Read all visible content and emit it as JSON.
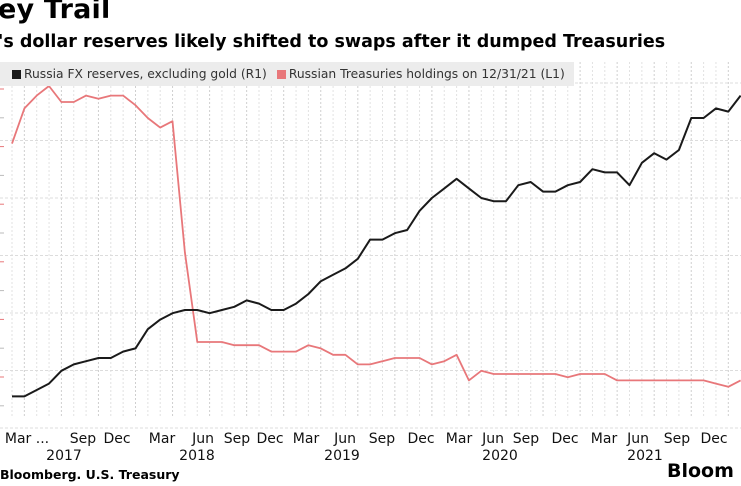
{
  "header": {
    "title": "ey Trail",
    "subtitle": "'s dollar reserves likely shifted to swaps after it dumped Treasuries"
  },
  "footer": {
    "source": "Bloomberg. U.S. Treasury",
    "brand": "Bloom"
  },
  "chart_data": {
    "type": "line",
    "title": "ey Trail",
    "subtitle": "'s dollar reserves likely shifted to swaps after it dumped Treasuries",
    "xlabel": "",
    "ylabel_left": "",
    "ylabel_right": "",
    "y_units_note": "Axis value labels are cropped out of the image; values are relative (0 = bottom of plot, 100 = top of plot).",
    "ylim": [
      0,
      100
    ],
    "grid": true,
    "legend_position": "top-left",
    "x_tick_labels": [
      "Mar ...",
      "Sep",
      "Dec",
      "Mar",
      "Jun",
      "Sep",
      "Dec",
      "Mar",
      "Jun",
      "Sep",
      "Dec",
      "Mar",
      "Jun",
      "Sep",
      "Dec",
      "Mar",
      "Jun",
      "Sep",
      "Dec"
    ],
    "x_year_labels": [
      "2017",
      "2018",
      "2019",
      "2020",
      "2021"
    ],
    "x_range": [
      "2017-02",
      "2021-12"
    ],
    "series": [
      {
        "name": "Russia FX reserves, excluding gold (R1)",
        "axis": "right",
        "color": "#1a1a1a",
        "points": [
          [
            "2017-02",
            3
          ],
          [
            "2017-03",
            3
          ],
          [
            "2017-04",
            5
          ],
          [
            "2017-05",
            7
          ],
          [
            "2017-06",
            11
          ],
          [
            "2017-07",
            13
          ],
          [
            "2017-08",
            14
          ],
          [
            "2017-09",
            15
          ],
          [
            "2017-10",
            15
          ],
          [
            "2017-11",
            17
          ],
          [
            "2017-12",
            18
          ],
          [
            "2018-01",
            24
          ],
          [
            "2018-02",
            27
          ],
          [
            "2018-03",
            29
          ],
          [
            "2018-04",
            30
          ],
          [
            "2018-05",
            30
          ],
          [
            "2018-06",
            29
          ],
          [
            "2018-07",
            30
          ],
          [
            "2018-08",
            31
          ],
          [
            "2018-09",
            33
          ],
          [
            "2018-10",
            32
          ],
          [
            "2018-11",
            30
          ],
          [
            "2018-12",
            30
          ],
          [
            "2019-01",
            32
          ],
          [
            "2019-02",
            35
          ],
          [
            "2019-03",
            39
          ],
          [
            "2019-04",
            41
          ],
          [
            "2019-05",
            43
          ],
          [
            "2019-06",
            46
          ],
          [
            "2019-07",
            52
          ],
          [
            "2019-08",
            52
          ],
          [
            "2019-09",
            54
          ],
          [
            "2019-10",
            55
          ],
          [
            "2019-11",
            61
          ],
          [
            "2019-12",
            65
          ],
          [
            "2020-01",
            68
          ],
          [
            "2020-02",
            71
          ],
          [
            "2020-03",
            68
          ],
          [
            "2020-04",
            65
          ],
          [
            "2020-05",
            64
          ],
          [
            "2020-06",
            64
          ],
          [
            "2020-07",
            69
          ],
          [
            "2020-08",
            70
          ],
          [
            "2020-09",
            67
          ],
          [
            "2020-10",
            67
          ],
          [
            "2020-11",
            69
          ],
          [
            "2020-12",
            70
          ],
          [
            "2021-01",
            74
          ],
          [
            "2021-02",
            73
          ],
          [
            "2021-03",
            73
          ],
          [
            "2021-04",
            69
          ],
          [
            "2021-05",
            76
          ],
          [
            "2021-06",
            79
          ],
          [
            "2021-07",
            77
          ],
          [
            "2021-08",
            80
          ],
          [
            "2021-09",
            90
          ],
          [
            "2021-10",
            90
          ],
          [
            "2021-11",
            93
          ],
          [
            "2021-12",
            92
          ],
          [
            "2022-01",
            97
          ]
        ]
      },
      {
        "name": "Russian Treasuries holdings on 12/31/21 (L1)",
        "axis": "left",
        "color": "#e8777a",
        "points": [
          [
            "2017-02",
            82
          ],
          [
            "2017-03",
            93
          ],
          [
            "2017-04",
            97
          ],
          [
            "2017-05",
            100
          ],
          [
            "2017-06",
            95
          ],
          [
            "2017-07",
            95
          ],
          [
            "2017-08",
            97
          ],
          [
            "2017-09",
            96
          ],
          [
            "2017-10",
            97
          ],
          [
            "2017-11",
            97
          ],
          [
            "2017-12",
            94
          ],
          [
            "2018-01",
            90
          ],
          [
            "2018-02",
            87
          ],
          [
            "2018-03",
            89
          ],
          [
            "2018-04",
            48
          ],
          [
            "2018-05",
            20
          ],
          [
            "2018-06",
            20
          ],
          [
            "2018-07",
            20
          ],
          [
            "2018-08",
            19
          ],
          [
            "2018-09",
            19
          ],
          [
            "2018-10",
            19
          ],
          [
            "2018-11",
            17
          ],
          [
            "2018-12",
            17
          ],
          [
            "2019-01",
            17
          ],
          [
            "2019-02",
            19
          ],
          [
            "2019-03",
            18
          ],
          [
            "2019-04",
            16
          ],
          [
            "2019-05",
            16
          ],
          [
            "2019-06",
            13
          ],
          [
            "2019-07",
            13
          ],
          [
            "2019-08",
            14
          ],
          [
            "2019-09",
            15
          ],
          [
            "2019-10",
            15
          ],
          [
            "2019-11",
            15
          ],
          [
            "2019-12",
            13
          ],
          [
            "2020-01",
            14
          ],
          [
            "2020-02",
            16
          ],
          [
            "2020-03",
            8
          ],
          [
            "2020-04",
            11
          ],
          [
            "2020-05",
            10
          ],
          [
            "2020-06",
            10
          ],
          [
            "2020-07",
            10
          ],
          [
            "2020-08",
            10
          ],
          [
            "2020-09",
            10
          ],
          [
            "2020-10",
            10
          ],
          [
            "2020-11",
            9
          ],
          [
            "2020-12",
            10
          ],
          [
            "2021-01",
            10
          ],
          [
            "2021-02",
            10
          ],
          [
            "2021-03",
            8
          ],
          [
            "2021-04",
            8
          ],
          [
            "2021-05",
            8
          ],
          [
            "2021-06",
            8
          ],
          [
            "2021-07",
            8
          ],
          [
            "2021-08",
            8
          ],
          [
            "2021-09",
            8
          ],
          [
            "2021-10",
            8
          ],
          [
            "2021-11",
            7
          ],
          [
            "2021-12",
            6
          ],
          [
            "2022-01",
            8
          ]
        ]
      }
    ]
  },
  "legend": [
    {
      "label": "Russia FX reserves, excluding gold (R1)",
      "color": "#1a1a1a"
    },
    {
      "label": "Russian Treasuries holdings on 12/31/21 (L1)",
      "color": "#e8777a"
    }
  ]
}
